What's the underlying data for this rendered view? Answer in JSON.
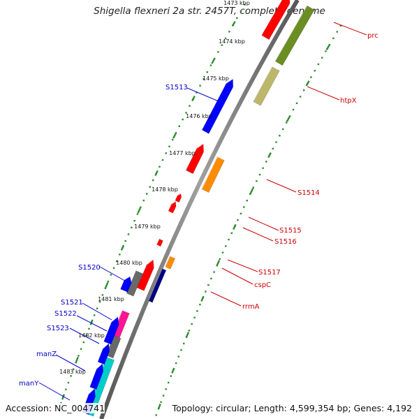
{
  "title": "Shigella flexneri 2a str. 2457T, complete genome",
  "accession": "Accession: NC_004741",
  "summary": "Topology: circular; Length: 4,599,354 bp; Genes: 4,192",
  "colors": {
    "backbone": "#808080",
    "tick": "#2e8b2e",
    "forward_label": "#0000cc",
    "reverse_label": "#cc0000"
  },
  "kbp_labels": [
    "1473 kbp",
    "1474 kbp",
    "1475 kbp",
    "1476 kbp",
    "1477 kbp",
    "1478 kbp",
    "1479 kbp",
    "1480 kbp",
    "1481 kbp",
    "1482 kbp",
    "1483 kbp"
  ],
  "gene_labels": [
    {
      "text": "prc",
      "strand": "reverse"
    },
    {
      "text": "htpX",
      "strand": "reverse"
    },
    {
      "text": "S1513",
      "strand": "forward"
    },
    {
      "text": "S1514",
      "strand": "reverse"
    },
    {
      "text": "S1515",
      "strand": "reverse"
    },
    {
      "text": "S1516",
      "strand": "reverse"
    },
    {
      "text": "S1517",
      "strand": "reverse"
    },
    {
      "text": "cspC",
      "strand": "reverse"
    },
    {
      "text": "rrmA",
      "strand": "reverse"
    },
    {
      "text": "S1520",
      "strand": "forward"
    },
    {
      "text": "S1521",
      "strand": "forward"
    },
    {
      "text": "S1522",
      "strand": "forward"
    },
    {
      "text": "S1523",
      "strand": "forward"
    },
    {
      "text": "manZ",
      "strand": "forward"
    },
    {
      "text": "manY",
      "strand": "forward"
    }
  ],
  "features": [
    {
      "kind": "fwd-gene",
      "color": "#ff0000"
    },
    {
      "kind": "fwd-gene",
      "color": "#0000ff"
    },
    {
      "kind": "fwd-gene",
      "color": "#ff0000"
    },
    {
      "kind": "fwd-gene",
      "color": "#ff0000"
    },
    {
      "kind": "fwd-gene",
      "color": "#ff0000"
    },
    {
      "kind": "fwd-gene",
      "color": "#ff0000"
    },
    {
      "kind": "fwd-gene",
      "color": "#ff0000"
    },
    {
      "kind": "fwd-gene",
      "color": "#696969"
    },
    {
      "kind": "fwd-gene",
      "color": "#ff1493"
    },
    {
      "kind": "fwd-gene",
      "color": "#696969"
    },
    {
      "kind": "fwd-gene",
      "color": "#00cccc"
    },
    {
      "kind": "rev-gene",
      "color": "#6b8e23"
    },
    {
      "kind": "rev-gene",
      "color": "#bdb76b"
    },
    {
      "kind": "rev-gene",
      "color": "#ff8c00"
    },
    {
      "kind": "rev-gene",
      "color": "#ff8c00"
    },
    {
      "kind": "rev-gene",
      "color": "#000080"
    },
    {
      "kind": "rev-gene",
      "color": "#0000ff"
    },
    {
      "kind": "rev-gene",
      "color": "#0000ff"
    },
    {
      "kind": "rev-gene",
      "color": "#0000ff"
    },
    {
      "kind": "rev-gene",
      "color": "#0000ff"
    },
    {
      "kind": "rev-gene",
      "color": "#0000ff"
    }
  ]
}
